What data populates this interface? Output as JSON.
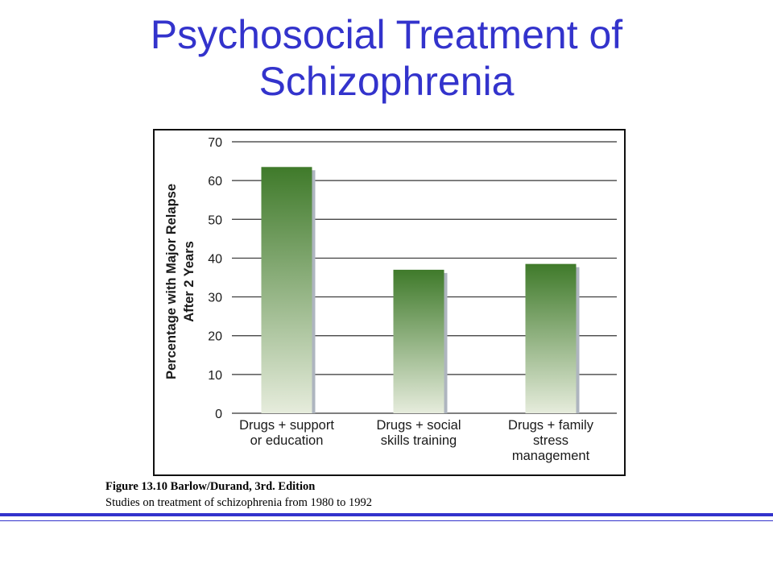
{
  "slide": {
    "title_line1": "Psychosocial Treatment of",
    "title_line2": "Schizophrenia"
  },
  "caption": {
    "title": "Figure 13.10 Barlow/Durand, 3rd. Edition",
    "subtitle": "Studies on treatment of schizophrenia from 1980 to 1992"
  },
  "colors": {
    "title": "#3333cc",
    "bar_top": "#3f7a2a",
    "bar_bottom": "#e6ecdc",
    "bar_shadow": "#aeb5bf",
    "grid": "#333333",
    "rule": "#3333cc"
  },
  "chart_data": {
    "type": "bar",
    "categories": [
      [
        "Drugs + support",
        "or education"
      ],
      [
        "Drugs + social",
        "skills training"
      ],
      [
        "Drugs + family",
        "stress",
        "management"
      ]
    ],
    "values": [
      63.5,
      37,
      38.5
    ],
    "ylabel": [
      "Percentage with Major Relapse",
      "After 2 Years"
    ],
    "ylim": [
      0,
      70
    ],
    "yticks": [
      0,
      10,
      20,
      30,
      40,
      50,
      60,
      70
    ],
    "grid": true,
    "legend": "none"
  }
}
